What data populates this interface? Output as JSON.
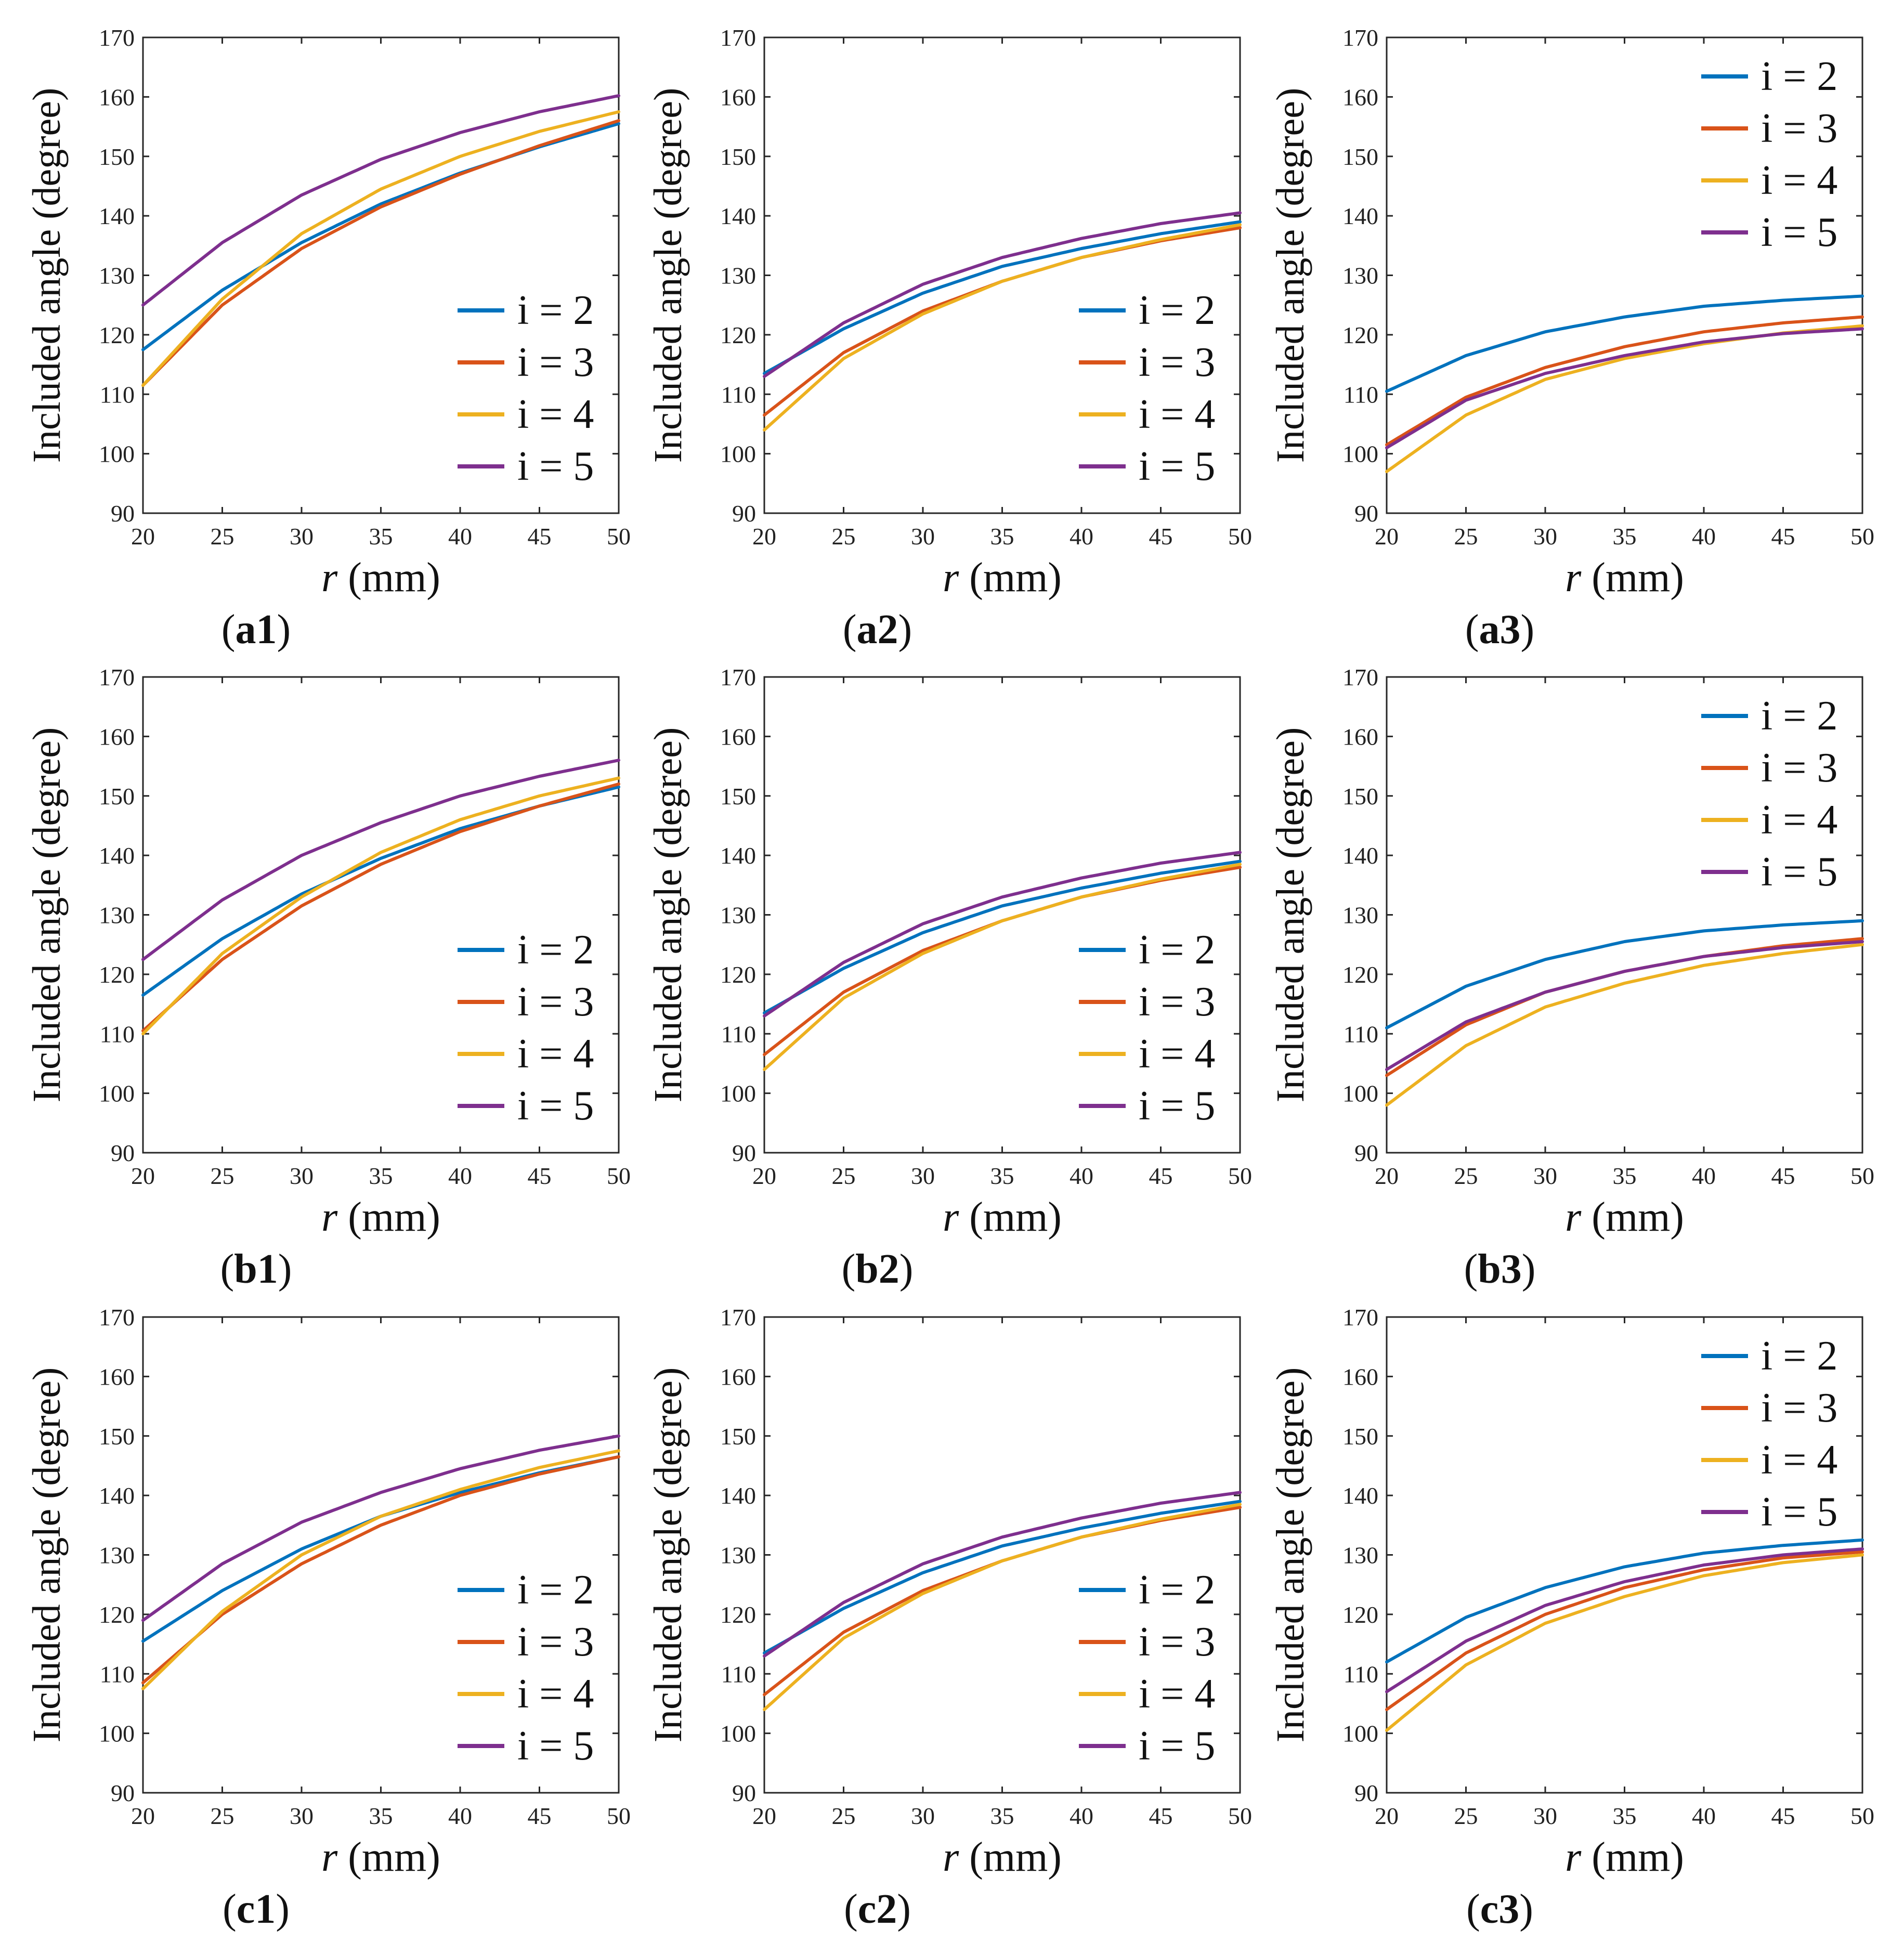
{
  "colors": {
    "i2": "#0072BD",
    "i3": "#D95319",
    "i4": "#EDB120",
    "i5": "#7E2F8E",
    "axis": "#262626"
  },
  "chart_data": [
    {
      "type": "line",
      "id": "a1",
      "label_letter": "a",
      "label_num": "1",
      "xlabel_var": "r",
      "xlabel_unit": "(mm)",
      "ylabel": "Included angle (degree)",
      "xlim": [
        20,
        50
      ],
      "ylim": [
        90,
        170
      ],
      "xticks": [
        "20",
        "25",
        "30",
        "35",
        "40",
        "45",
        "50"
      ],
      "yticks": [
        "90",
        "100",
        "110",
        "120",
        "130",
        "140",
        "150",
        "160",
        "170"
      ],
      "legend_position": "bottom-right",
      "x": [
        20,
        25,
        30,
        35,
        40,
        45,
        50
      ],
      "series": [
        {
          "name": "i = 2",
          "key": "i2",
          "values": [
            117.5,
            127.5,
            135.5,
            142,
            147.2,
            151.6,
            155.5
          ]
        },
        {
          "name": "i = 3",
          "key": "i3",
          "values": [
            111.5,
            125,
            134.5,
            141.5,
            147,
            151.8,
            156
          ]
        },
        {
          "name": "i = 4",
          "key": "i4",
          "values": [
            111.5,
            126,
            137,
            144.5,
            150,
            154.2,
            157.5
          ]
        },
        {
          "name": "i = 5",
          "key": "i5",
          "values": [
            125,
            135.5,
            143.5,
            149.5,
            154,
            157.5,
            160.2
          ]
        }
      ]
    },
    {
      "type": "line",
      "id": "a2",
      "label_letter": "a",
      "label_num": "2",
      "xlabel_var": "r",
      "xlabel_unit": "(mm)",
      "ylabel": "Included angle (degree)",
      "xlim": [
        20,
        50
      ],
      "ylim": [
        90,
        170
      ],
      "xticks": [
        "20",
        "25",
        "30",
        "35",
        "40",
        "45",
        "50"
      ],
      "yticks": [
        "90",
        "100",
        "110",
        "120",
        "130",
        "140",
        "150",
        "160",
        "170"
      ],
      "legend_position": "bottom-right",
      "x": [
        20,
        25,
        30,
        35,
        40,
        45,
        50
      ],
      "series": [
        {
          "name": "i = 2",
          "key": "i2",
          "values": [
            113.5,
            121,
            127,
            131.5,
            134.5,
            137,
            139
          ]
        },
        {
          "name": "i = 3",
          "key": "i3",
          "values": [
            106.5,
            117,
            124,
            129,
            133,
            135.8,
            138
          ]
        },
        {
          "name": "i = 4",
          "key": "i4",
          "values": [
            104,
            116,
            123.5,
            129,
            133,
            136,
            138.5
          ]
        },
        {
          "name": "i = 5",
          "key": "i5",
          "values": [
            113,
            122,
            128.5,
            133,
            136.2,
            138.7,
            140.5
          ]
        }
      ]
    },
    {
      "type": "line",
      "id": "a3",
      "label_letter": "a",
      "label_num": "3",
      "xlabel_var": "r",
      "xlabel_unit": "(mm)",
      "ylabel": "Included angle (degree)",
      "xlim": [
        20,
        50
      ],
      "ylim": [
        90,
        170
      ],
      "xticks": [
        "20",
        "25",
        "30",
        "35",
        "40",
        "45",
        "50"
      ],
      "yticks": [
        "90",
        "100",
        "110",
        "120",
        "130",
        "140",
        "150",
        "160",
        "170"
      ],
      "legend_position": "top-right",
      "x": [
        20,
        25,
        30,
        35,
        40,
        45,
        50
      ],
      "series": [
        {
          "name": "i = 2",
          "key": "i2",
          "values": [
            110.5,
            116.5,
            120.5,
            123,
            124.8,
            125.8,
            126.5
          ]
        },
        {
          "name": "i = 3",
          "key": "i3",
          "values": [
            101.5,
            109.5,
            114.5,
            118,
            120.5,
            122,
            123
          ]
        },
        {
          "name": "i = 4",
          "key": "i4",
          "values": [
            97,
            106.5,
            112.5,
            116,
            118.5,
            120.3,
            121.5
          ]
        },
        {
          "name": "i = 5",
          "key": "i5",
          "values": [
            101,
            109,
            113.5,
            116.5,
            118.8,
            120.2,
            121
          ]
        }
      ]
    },
    {
      "type": "line",
      "id": "b1",
      "label_letter": "b",
      "label_num": "1",
      "xlabel_var": "r",
      "xlabel_unit": "(mm)",
      "ylabel": "Included angle (degree)",
      "xlim": [
        20,
        50
      ],
      "ylim": [
        90,
        170
      ],
      "xticks": [
        "20",
        "25",
        "30",
        "35",
        "40",
        "45",
        "50"
      ],
      "yticks": [
        "90",
        "100",
        "110",
        "120",
        "130",
        "140",
        "150",
        "160",
        "170"
      ],
      "legend_position": "bottom-right",
      "x": [
        20,
        25,
        30,
        35,
        40,
        45,
        50
      ],
      "series": [
        {
          "name": "i = 2",
          "key": "i2",
          "values": [
            116.5,
            126,
            133.5,
            139.5,
            144.5,
            148.3,
            151.5
          ]
        },
        {
          "name": "i = 3",
          "key": "i3",
          "values": [
            110.5,
            122.5,
            131.5,
            138.5,
            144,
            148.3,
            152
          ]
        },
        {
          "name": "i = 4",
          "key": "i4",
          "values": [
            110,
            123.5,
            133,
            140.5,
            146,
            150,
            153
          ]
        },
        {
          "name": "i = 5",
          "key": "i5",
          "values": [
            122.5,
            132.5,
            140,
            145.5,
            150,
            153.3,
            156
          ]
        }
      ]
    },
    {
      "type": "line",
      "id": "b2",
      "label_letter": "b",
      "label_num": "2",
      "xlabel_var": "r",
      "xlabel_unit": "(mm)",
      "ylabel": "Included angle (degree)",
      "xlim": [
        20,
        50
      ],
      "ylim": [
        90,
        170
      ],
      "xticks": [
        "20",
        "25",
        "30",
        "35",
        "40",
        "45",
        "50"
      ],
      "yticks": [
        "90",
        "100",
        "110",
        "120",
        "130",
        "140",
        "150",
        "160",
        "170"
      ],
      "legend_position": "bottom-right",
      "x": [
        20,
        25,
        30,
        35,
        40,
        45,
        50
      ],
      "series": [
        {
          "name": "i = 2",
          "key": "i2",
          "values": [
            113.5,
            121,
            127,
            131.5,
            134.5,
            137,
            139
          ]
        },
        {
          "name": "i = 3",
          "key": "i3",
          "values": [
            106.5,
            117,
            124,
            129,
            133,
            135.8,
            138
          ]
        },
        {
          "name": "i = 4",
          "key": "i4",
          "values": [
            104,
            116,
            123.5,
            129,
            133,
            136,
            138.5
          ]
        },
        {
          "name": "i = 5",
          "key": "i5",
          "values": [
            113,
            122,
            128.5,
            133,
            136.2,
            138.7,
            140.5
          ]
        }
      ]
    },
    {
      "type": "line",
      "id": "b3",
      "label_letter": "b",
      "label_num": "3",
      "xlabel_var": "r",
      "xlabel_unit": "(mm)",
      "ylabel": "Included angle (degree)",
      "xlim": [
        20,
        50
      ],
      "ylim": [
        90,
        170
      ],
      "xticks": [
        "20",
        "25",
        "30",
        "35",
        "40",
        "45",
        "50"
      ],
      "yticks": [
        "90",
        "100",
        "110",
        "120",
        "130",
        "140",
        "150",
        "160",
        "170"
      ],
      "legend_position": "top-right",
      "x": [
        20,
        25,
        30,
        35,
        40,
        45,
        50
      ],
      "series": [
        {
          "name": "i = 2",
          "key": "i2",
          "values": [
            111,
            118,
            122.5,
            125.5,
            127.3,
            128.3,
            129
          ]
        },
        {
          "name": "i = 3",
          "key": "i3",
          "values": [
            103,
            111.5,
            117,
            120.5,
            123,
            124.8,
            126
          ]
        },
        {
          "name": "i = 4",
          "key": "i4",
          "values": [
            98,
            108,
            114.5,
            118.5,
            121.5,
            123.5,
            125
          ]
        },
        {
          "name": "i = 5",
          "key": "i5",
          "values": [
            104,
            112,
            117,
            120.5,
            123,
            124.5,
            125.5
          ]
        }
      ]
    },
    {
      "type": "line",
      "id": "c1",
      "label_letter": "c",
      "label_num": "1",
      "xlabel_var": "r",
      "xlabel_unit": "(mm)",
      "ylabel": "Included angle (degree)",
      "xlim": [
        20,
        50
      ],
      "ylim": [
        90,
        170
      ],
      "xticks": [
        "20",
        "25",
        "30",
        "35",
        "40",
        "45",
        "50"
      ],
      "yticks": [
        "90",
        "100",
        "110",
        "120",
        "130",
        "140",
        "150",
        "160",
        "170"
      ],
      "legend_position": "bottom-right",
      "x": [
        20,
        25,
        30,
        35,
        40,
        45,
        50
      ],
      "series": [
        {
          "name": "i = 2",
          "key": "i2",
          "values": [
            115.5,
            124,
            131,
            136.5,
            140.5,
            143.8,
            146.5
          ]
        },
        {
          "name": "i = 3",
          "key": "i3",
          "values": [
            108.5,
            120,
            128.5,
            135,
            140,
            143.6,
            146.5
          ]
        },
        {
          "name": "i = 4",
          "key": "i4",
          "values": [
            107.5,
            120.5,
            130,
            136.5,
            141,
            144.7,
            147.5
          ]
        },
        {
          "name": "i = 5",
          "key": "i5",
          "values": [
            119,
            128.5,
            135.5,
            140.5,
            144.5,
            147.6,
            150
          ]
        }
      ]
    },
    {
      "type": "line",
      "id": "c2",
      "label_letter": "c",
      "label_num": "2",
      "xlabel_var": "r",
      "xlabel_unit": "(mm)",
      "ylabel": "Included angle (degree)",
      "xlim": [
        20,
        50
      ],
      "ylim": [
        90,
        170
      ],
      "xticks": [
        "20",
        "25",
        "30",
        "35",
        "40",
        "45",
        "50"
      ],
      "yticks": [
        "90",
        "100",
        "110",
        "120",
        "130",
        "140",
        "150",
        "160",
        "170"
      ],
      "legend_position": "bottom-right",
      "x": [
        20,
        25,
        30,
        35,
        40,
        45,
        50
      ],
      "series": [
        {
          "name": "i = 2",
          "key": "i2",
          "values": [
            113.5,
            121,
            127,
            131.5,
            134.5,
            137,
            139
          ]
        },
        {
          "name": "i = 3",
          "key": "i3",
          "values": [
            106.5,
            117,
            124,
            129,
            133,
            135.8,
            138
          ]
        },
        {
          "name": "i = 4",
          "key": "i4",
          "values": [
            104,
            116,
            123.5,
            129,
            133,
            136,
            138.5
          ]
        },
        {
          "name": "i = 5",
          "key": "i5",
          "values": [
            113,
            122,
            128.5,
            133,
            136.2,
            138.7,
            140.5
          ]
        }
      ]
    },
    {
      "type": "line",
      "id": "c3",
      "label_letter": "c",
      "label_num": "3",
      "xlabel_var": "r",
      "xlabel_unit": "(mm)",
      "ylabel": "Included angle (degree)",
      "xlim": [
        20,
        50
      ],
      "ylim": [
        90,
        170
      ],
      "xticks": [
        "20",
        "25",
        "30",
        "35",
        "40",
        "45",
        "50"
      ],
      "yticks": [
        "90",
        "100",
        "110",
        "120",
        "130",
        "140",
        "150",
        "160",
        "170"
      ],
      "legend_position": "top-right",
      "x": [
        20,
        25,
        30,
        35,
        40,
        45,
        50
      ],
      "series": [
        {
          "name": "i = 2",
          "key": "i2",
          "values": [
            112,
            119.5,
            124.5,
            128,
            130.3,
            131.6,
            132.5
          ]
        },
        {
          "name": "i = 3",
          "key": "i3",
          "values": [
            104,
            113.5,
            120,
            124.5,
            127.5,
            129.5,
            130.5
          ]
        },
        {
          "name": "i = 4",
          "key": "i4",
          "values": [
            100.5,
            111.5,
            118.5,
            123,
            126.5,
            128.7,
            130
          ]
        },
        {
          "name": "i = 5",
          "key": "i5",
          "values": [
            107,
            115.5,
            121.5,
            125.5,
            128.3,
            130,
            131
          ]
        }
      ]
    }
  ]
}
